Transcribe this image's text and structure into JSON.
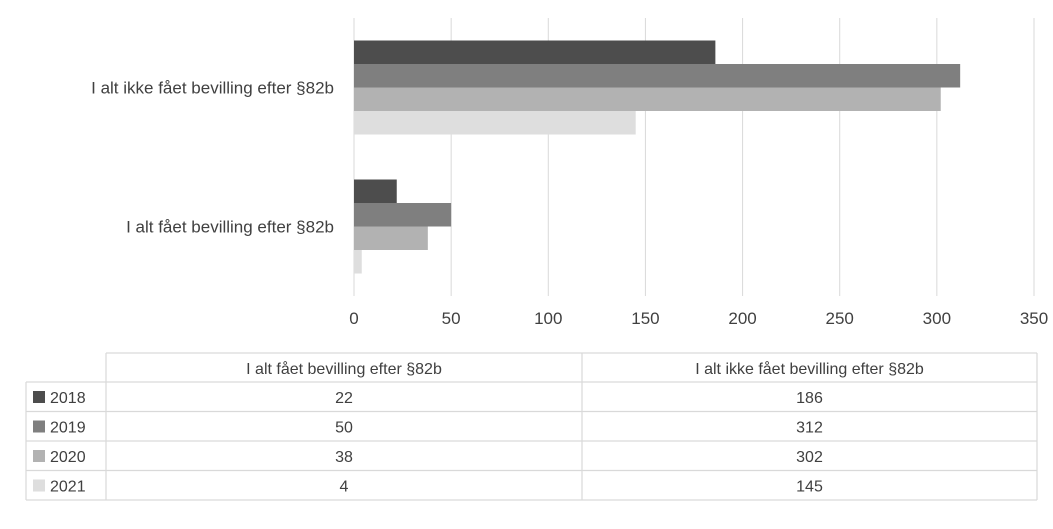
{
  "chart_data": {
    "type": "bar",
    "orientation": "horizontal",
    "title": "",
    "xlabel": "",
    "ylabel": "",
    "categories": [
      "I alt fået bevilling efter §82b",
      "I alt ikke fået bevilling efter §82b"
    ],
    "series": [
      {
        "name": "2018",
        "values": [
          22,
          186
        ],
        "color": "#4d4d4d"
      },
      {
        "name": "2019",
        "values": [
          50,
          312
        ],
        "color": "#7f7f7f"
      },
      {
        "name": "2020",
        "values": [
          38,
          302
        ],
        "color": "#b2b2b2"
      },
      {
        "name": "2021",
        "values": [
          4,
          145
        ],
        "color": "#dedede"
      }
    ],
    "xlim": [
      0,
      350
    ],
    "xticks": [
      "0",
      "50",
      "100",
      "150",
      "200",
      "250",
      "300",
      "350"
    ],
    "grid": true,
    "legend": "data-table",
    "data_table": {
      "headers": [
        "I alt fået bevilling efter §82b",
        "I alt ikke fået bevilling efter §82b"
      ],
      "rows": [
        {
          "label": "2018",
          "cells": [
            "22",
            "186"
          ]
        },
        {
          "label": "2019",
          "cells": [
            "50",
            "312"
          ]
        },
        {
          "label": "2020",
          "cells": [
            "38",
            "302"
          ]
        },
        {
          "label": "2021",
          "cells": [
            "4",
            "145"
          ]
        }
      ]
    }
  }
}
